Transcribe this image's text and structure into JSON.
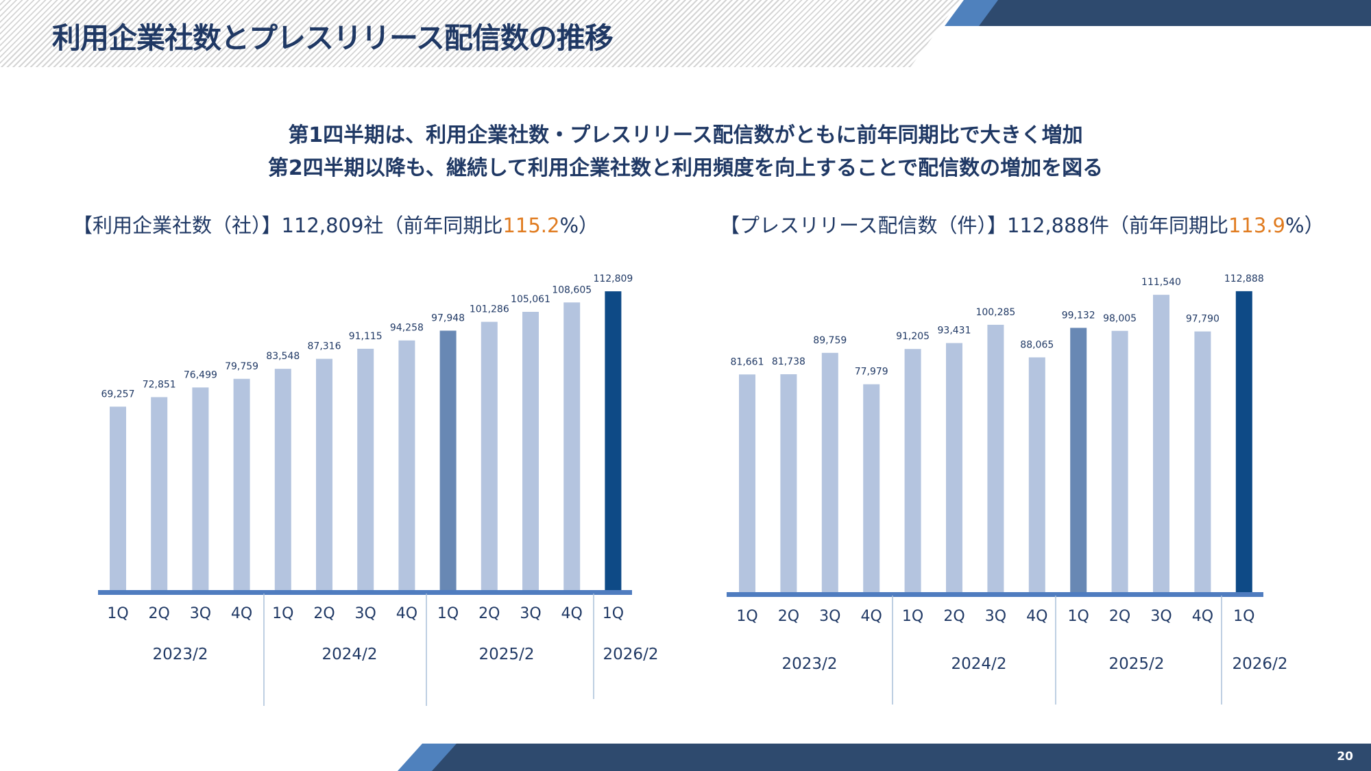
{
  "header": {
    "title": "利用企業社数とプレスリリース配信数の推移"
  },
  "page_number": "20",
  "subtitle": {
    "line1": "第1四半期は、利用企業社数・プレスリリース配信数がともに前年同期比で大きく増加",
    "line2": "第2四半期以降も、継続して利用企業社数と利用頻度を向上することで配信数の増加を図る"
  },
  "colors": {
    "bar_normal": "#b4c4df",
    "bar_prev_1q": "#6888b4",
    "bar_current": "#0e4a86",
    "axis": "#4f7cbf",
    "highlight": "#e07b1f",
    "divider": "#a9bfd9"
  },
  "chart_data": [
    {
      "type": "bar",
      "header_prefix": "【利用企業社数（社）】112,809社（前年同期比",
      "header_highlight": "115.2",
      "header_suffix": "%）",
      "categories": [
        "1Q",
        "2Q",
        "3Q",
        "4Q",
        "1Q",
        "2Q",
        "3Q",
        "4Q",
        "1Q",
        "2Q",
        "3Q",
        "4Q",
        "1Q"
      ],
      "groups": [
        "2023/2",
        "2024/2",
        "2025/2",
        "2026/2"
      ],
      "values": [
        69257,
        72851,
        76499,
        79759,
        83548,
        87316,
        91115,
        94258,
        97948,
        101286,
        105061,
        108605,
        112809
      ],
      "value_labels": [
        "69,257",
        "72,851",
        "76,499",
        "79,759",
        "83,548",
        "87,316",
        "91,115",
        "94,258",
        "97,948",
        "101,286",
        "105,061",
        "108,605",
        "112,809"
      ],
      "highlight": {
        "8": "prev",
        "12": "current"
      },
      "ylim": [
        0,
        118000
      ]
    },
    {
      "type": "bar",
      "header_prefix": "【プレスリリース配信数（件）】112,888件（前年同期比",
      "header_highlight": "113.9",
      "header_suffix": "%）",
      "categories": [
        "1Q",
        "2Q",
        "3Q",
        "4Q",
        "1Q",
        "2Q",
        "3Q",
        "4Q",
        "1Q",
        "2Q",
        "3Q",
        "4Q",
        "1Q"
      ],
      "groups": [
        "2023/2",
        "2024/2",
        "2025/2",
        "2026/2"
      ],
      "values": [
        81661,
        81738,
        89759,
        77979,
        91205,
        93431,
        100285,
        88065,
        99132,
        98005,
        111540,
        97790,
        112888
      ],
      "value_labels": [
        "81,661",
        "81,738",
        "89,759",
        "77,979",
        "91,205",
        "93,431",
        "100,285",
        "88,065",
        "99,132",
        "98,005",
        "111,540",
        "97,790",
        "112,888"
      ],
      "highlight": {
        "8": "prev",
        "12": "current"
      },
      "ylim": [
        0,
        118000
      ]
    }
  ]
}
